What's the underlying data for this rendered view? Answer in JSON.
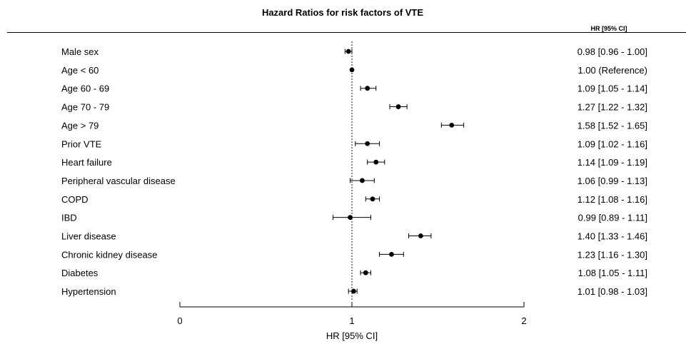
{
  "chart_data": {
    "type": "forest",
    "title": "Hazard Ratios for risk factors of VTE",
    "ci_header": "HR [95% CI]",
    "xlabel": "HR [95% CI]",
    "xlim": [
      0,
      2
    ],
    "xticks": [
      {
        "value": 0,
        "label": "0"
      },
      {
        "value": 1,
        "label": "1"
      },
      {
        "value": 2,
        "label": "2"
      }
    ],
    "reference_line": 1,
    "rows": [
      {
        "label": "Male sex",
        "hr": 0.98,
        "lower": 0.96,
        "upper": 1.0,
        "text": "0.98 [0.96 - 1.00]"
      },
      {
        "label": "Age < 60",
        "hr": 1.0,
        "lower": 1.0,
        "upper": 1.0,
        "text": "1.00 (Reference)"
      },
      {
        "label": "Age 60 - 69",
        "hr": 1.09,
        "lower": 1.05,
        "upper": 1.14,
        "text": "1.09 [1.05 - 1.14]"
      },
      {
        "label": "Age 70 - 79",
        "hr": 1.27,
        "lower": 1.22,
        "upper": 1.32,
        "text": "1.27 [1.22 - 1.32]"
      },
      {
        "label": "Age > 79",
        "hr": 1.58,
        "lower": 1.52,
        "upper": 1.65,
        "text": "1.58 [1.52 - 1.65]"
      },
      {
        "label": "Prior VTE",
        "hr": 1.09,
        "lower": 1.02,
        "upper": 1.16,
        "text": "1.09 [1.02 - 1.16]"
      },
      {
        "label": "Heart failure",
        "hr": 1.14,
        "lower": 1.09,
        "upper": 1.19,
        "text": "1.14 [1.09 - 1.19]"
      },
      {
        "label": "Peripheral vascular disease",
        "hr": 1.06,
        "lower": 0.99,
        "upper": 1.13,
        "text": "1.06 [0.99 - 1.13]"
      },
      {
        "label": "COPD",
        "hr": 1.12,
        "lower": 1.08,
        "upper": 1.16,
        "text": "1.12 [1.08 - 1.16]"
      },
      {
        "label": "IBD",
        "hr": 0.99,
        "lower": 0.89,
        "upper": 1.11,
        "text": "0.99 [0.89 - 1.11]"
      },
      {
        "label": "Liver disease",
        "hr": 1.4,
        "lower": 1.33,
        "upper": 1.46,
        "text": "1.40 [1.33 - 1.46]"
      },
      {
        "label": "Chronic kidney disease",
        "hr": 1.23,
        "lower": 1.16,
        "upper": 1.3,
        "text": "1.23 [1.16 - 1.30]"
      },
      {
        "label": "Diabetes",
        "hr": 1.08,
        "lower": 1.05,
        "upper": 1.11,
        "text": "1.08 [1.05 - 1.11]"
      },
      {
        "label": "Hypertension",
        "hr": 1.01,
        "lower": 0.98,
        "upper": 1.03,
        "text": "1.01 [0.98 - 1.03]"
      }
    ]
  }
}
